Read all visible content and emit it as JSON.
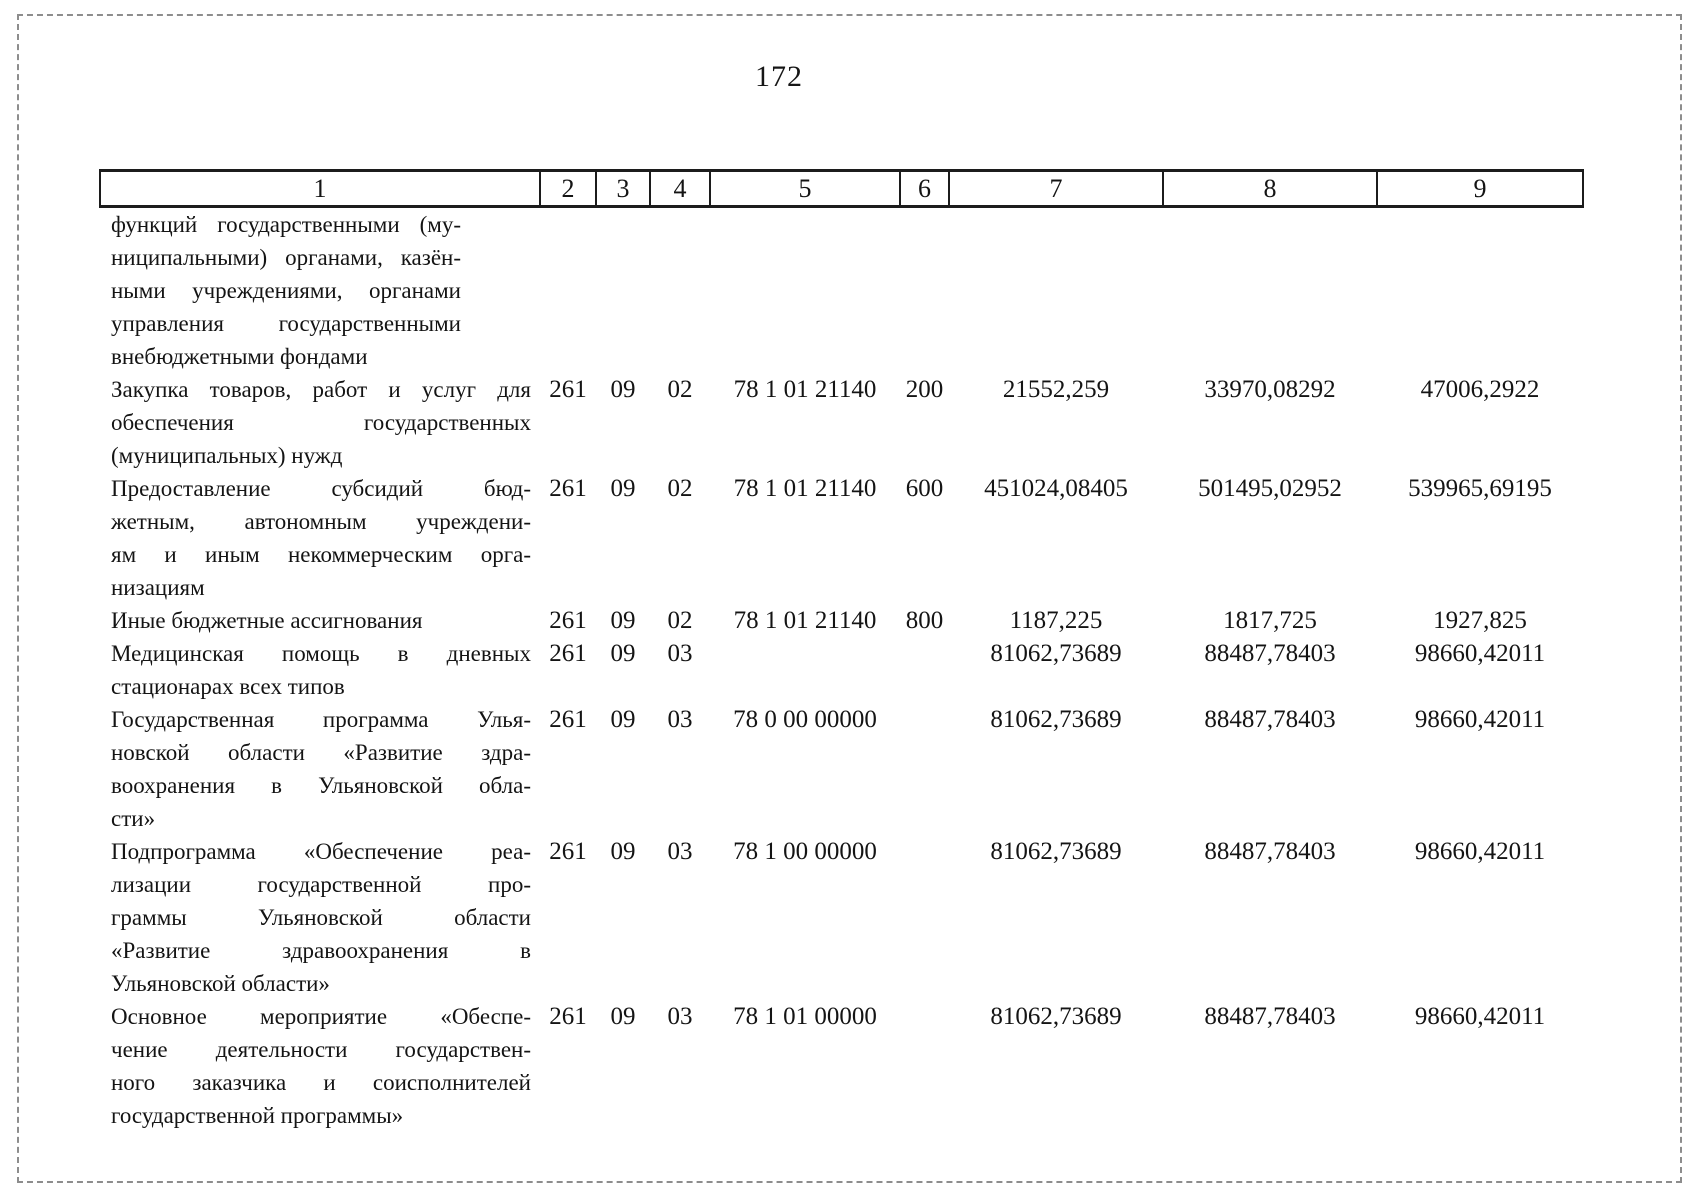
{
  "page": {
    "number": "172"
  },
  "table": {
    "header": [
      "1",
      "2",
      "3",
      "4",
      "5",
      "6",
      "7",
      "8",
      "9"
    ],
    "column_keys": [
      "col2",
      "col3",
      "col4",
      "col5",
      "col6",
      "col7",
      "col8",
      "col9"
    ],
    "rows": [
      {
        "narrow": true,
        "name_lines": [
          "функций государственными (му-",
          "ниципальными) органами, казён-",
          "ными учреждениями, органами",
          "управления государственными",
          "внебюджетными фондами"
        ],
        "cells": [
          "",
          "",
          "",
          "",
          "",
          "",
          "",
          ""
        ]
      },
      {
        "narrow": false,
        "name_lines": [
          "Закупка товаров, работ и услуг для",
          "обеспечения государственных",
          "(муниципальных) нужд"
        ],
        "cells": [
          "261",
          "09",
          "02",
          "78 1 01 21140",
          "200",
          "21552,259",
          "33970,08292",
          "47006,2922"
        ]
      },
      {
        "narrow": false,
        "name_lines": [
          "Предоставление субсидий бюд-",
          "жетным, автономным учреждени-",
          "ям и иным некоммерческим орга-",
          "низациям"
        ],
        "cells": [
          "261",
          "09",
          "02",
          "78 1 01 21140",
          "600",
          "451024,08405",
          "501495,02952",
          "539965,69195"
        ]
      },
      {
        "narrow": false,
        "name_lines": [
          "Иные бюджетные ассигнования"
        ],
        "cells": [
          "261",
          "09",
          "02",
          "78 1 01 21140",
          "800",
          "1187,225",
          "1817,725",
          "1927,825"
        ]
      },
      {
        "narrow": false,
        "name_lines": [
          "Медицинская помощь в дневных",
          "стационарах всех типов"
        ],
        "cells": [
          "261",
          "09",
          "03",
          "",
          "",
          "81062,73689",
          "88487,78403",
          "98660,42011"
        ]
      },
      {
        "narrow": false,
        "name_lines": [
          "Государственная программа Улья-",
          "новской области «Развитие здра-",
          "воохранения в Ульяновской обла-",
          "сти»"
        ],
        "cells": [
          "261",
          "09",
          "03",
          "78 0 00 00000",
          "",
          "81062,73689",
          "88487,78403",
          "98660,42011"
        ]
      },
      {
        "narrow": false,
        "name_lines": [
          "Подпрограмма «Обеспечение реа-",
          "лизации государственной про-",
          "граммы Ульяновской области",
          "«Развитие здравоохранения в",
          "Ульяновской области»"
        ],
        "cells": [
          "261",
          "09",
          "03",
          "78 1 00 00000",
          "",
          "81062,73689",
          "88487,78403",
          "98660,42011"
        ]
      },
      {
        "narrow": false,
        "name_lines": [
          "Основное мероприятие «Обеспе-",
          "чение деятельности государствен-",
          "ного заказчика и соисполнителей",
          "государственной программы»"
        ],
        "cells": [
          "261",
          "09",
          "03",
          "78 1 01 00000",
          "",
          "81062,73689",
          "88487,78403",
          "98660,42011"
        ]
      }
    ]
  }
}
